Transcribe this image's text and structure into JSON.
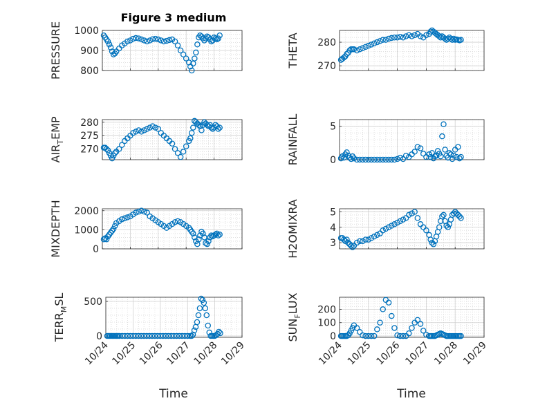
{
  "figure": {
    "title": "Figure 3 medium"
  },
  "chart_data": [
    {
      "id": "p1",
      "type": "scatter",
      "title": "Figure 3 medium",
      "ylabel": "PRESSURE",
      "xlim": [
        0,
        5
      ],
      "ylim": [
        800,
        1000
      ],
      "yticks": [
        800,
        900,
        1000
      ],
      "show_x_ticks": false,
      "x": [
        0.05,
        0.1,
        0.15,
        0.2,
        0.25,
        0.3,
        0.35,
        0.4,
        0.45,
        0.5,
        0.6,
        0.7,
        0.8,
        0.9,
        1.0,
        1.1,
        1.2,
        1.3,
        1.4,
        1.5,
        1.6,
        1.7,
        1.8,
        1.9,
        2.0,
        2.1,
        2.2,
        2.3,
        2.4,
        2.5,
        2.6,
        2.7,
        2.8,
        2.9,
        3.0,
        3.1,
        3.15,
        3.2,
        3.25,
        3.3,
        3.35,
        3.4,
        3.45,
        3.5,
        3.55,
        3.6,
        3.65,
        3.7,
        3.75,
        3.8,
        3.85,
        3.9,
        3.95,
        4.0,
        4.05,
        4.1,
        4.15,
        4.2
      ],
      "y": [
        975,
        965,
        955,
        945,
        930,
        915,
        895,
        880,
        885,
        895,
        910,
        925,
        935,
        945,
        950,
        958,
        962,
        960,
        955,
        950,
        945,
        950,
        956,
        958,
        955,
        950,
        945,
        948,
        952,
        955,
        945,
        925,
        900,
        880,
        860,
        840,
        820,
        800,
        835,
        860,
        890,
        930,
        965,
        975,
        970,
        960,
        950,
        960,
        970,
        965,
        955,
        945,
        950,
        965,
        960,
        955,
        960,
        975
      ]
    },
    {
      "id": "p2",
      "type": "scatter",
      "ylabel": "THETA",
      "xlim": [
        0,
        5
      ],
      "ylim": [
        268,
        285
      ],
      "yticks": [
        270,
        280
      ],
      "show_x_ticks": false,
      "x": [
        0.05,
        0.1,
        0.15,
        0.2,
        0.25,
        0.3,
        0.35,
        0.4,
        0.45,
        0.5,
        0.6,
        0.7,
        0.8,
        0.9,
        1.0,
        1.1,
        1.2,
        1.3,
        1.4,
        1.5,
        1.6,
        1.7,
        1.8,
        1.9,
        2.0,
        2.1,
        2.2,
        2.3,
        2.4,
        2.5,
        2.6,
        2.7,
        2.8,
        2.9,
        3.0,
        3.1,
        3.15,
        3.2,
        3.25,
        3.3,
        3.35,
        3.4,
        3.45,
        3.5,
        3.55,
        3.6,
        3.65,
        3.7,
        3.75,
        3.8,
        3.85,
        3.9,
        3.95,
        4.0,
        4.05,
        4.1,
        4.15,
        4.2
      ],
      "y": [
        272.5,
        273,
        273.5,
        274,
        275,
        275.5,
        276.5,
        277,
        277,
        277,
        276.5,
        277,
        277.5,
        278,
        278.5,
        279,
        279.5,
        280,
        280.5,
        281,
        281,
        281.5,
        281.8,
        282,
        282,
        282.3,
        282,
        282.5,
        283,
        282.5,
        283,
        283.5,
        282.5,
        282,
        283,
        283.5,
        284.5,
        285,
        284.5,
        284,
        283.5,
        283,
        282.5,
        282,
        282.5,
        282,
        281.5,
        281,
        281.5,
        282,
        281.5,
        281,
        281.5,
        281,
        281.2,
        281,
        280.8,
        281
      ]
    },
    {
      "id": "p3",
      "type": "scatter",
      "ylabel_main": "AIR",
      "ylabel_sub": "T",
      "ylabel_tail": "EMP",
      "xlim": [
        0,
        5
      ],
      "ylim": [
        266,
        281
      ],
      "yticks": [
        270,
        275,
        280
      ],
      "show_x_ticks": false,
      "x": [
        0.05,
        0.1,
        0.15,
        0.2,
        0.25,
        0.3,
        0.35,
        0.4,
        0.45,
        0.5,
        0.6,
        0.7,
        0.8,
        0.9,
        1.0,
        1.1,
        1.2,
        1.3,
        1.4,
        1.5,
        1.6,
        1.7,
        1.8,
        1.9,
        2.0,
        2.1,
        2.2,
        2.3,
        2.4,
        2.5,
        2.6,
        2.7,
        2.8,
        2.9,
        3.0,
        3.1,
        3.15,
        3.2,
        3.25,
        3.3,
        3.35,
        3.4,
        3.45,
        3.5,
        3.55,
        3.6,
        3.65,
        3.7,
        3.75,
        3.8,
        3.85,
        3.9,
        3.95,
        4.0,
        4.05,
        4.1,
        4.15,
        4.2
      ],
      "y": [
        270.5,
        270.5,
        270,
        269.5,
        268.5,
        267.5,
        266.5,
        267.5,
        268.5,
        269,
        270,
        271.5,
        273,
        274,
        275,
        276,
        276.5,
        277,
        276.5,
        277,
        277.5,
        278,
        278.5,
        278,
        277.5,
        276,
        275,
        274,
        273,
        272,
        270,
        268.5,
        267,
        269,
        271,
        273,
        274,
        276,
        278,
        280.5,
        280,
        279.5,
        279,
        278.5,
        277,
        279,
        280,
        279.5,
        279,
        278.5,
        279,
        278,
        277.5,
        278,
        279,
        278.5,
        277.5,
        278
      ]
    },
    {
      "id": "p4",
      "type": "scatter",
      "ylabel": "RAINFALL",
      "xlim": [
        0,
        5
      ],
      "ylim": [
        0,
        6
      ],
      "yticks": [
        0,
        5
      ],
      "show_x_ticks": false,
      "x": [
        0.05,
        0.1,
        0.15,
        0.2,
        0.25,
        0.3,
        0.35,
        0.4,
        0.45,
        0.5,
        0.6,
        0.7,
        0.8,
        0.9,
        1.0,
        1.1,
        1.2,
        1.3,
        1.4,
        1.5,
        1.6,
        1.7,
        1.8,
        1.9,
        2.0,
        2.1,
        2.2,
        2.3,
        2.4,
        2.5,
        2.6,
        2.7,
        2.8,
        2.9,
        3.0,
        3.1,
        3.15,
        3.2,
        3.25,
        3.3,
        3.35,
        3.4,
        3.45,
        3.5,
        3.55,
        3.6,
        3.65,
        3.7,
        3.75,
        3.8,
        3.85,
        3.9,
        3.95,
        4.0,
        4.05,
        4.1,
        4.15,
        4.2
      ],
      "y": [
        0.2,
        0.5,
        0.3,
        0.8,
        1.1,
        0.6,
        0.3,
        0.1,
        0.5,
        0.2,
        0,
        0,
        0,
        0,
        0,
        0,
        0,
        0,
        0,
        0,
        0,
        0,
        0,
        0,
        0.1,
        0.3,
        0.1,
        0.6,
        0.4,
        0.8,
        1.2,
        1.9,
        1.7,
        0.9,
        0.4,
        0.8,
        0.4,
        1.0,
        0.2,
        0.5,
        0.6,
        1.3,
        0.9,
        0.5,
        3.5,
        5.3,
        1.5,
        0.6,
        0.3,
        1.0,
        0.8,
        0.1,
        0.6,
        1.5,
        0.4,
        1.9,
        0.2,
        0.4
      ]
    },
    {
      "id": "p5",
      "type": "scatter",
      "ylabel": "MIXDEPTH",
      "xlim": [
        0,
        5
      ],
      "ylim": [
        0,
        2100
      ],
      "yticks": [
        0,
        1000,
        2000
      ],
      "show_x_ticks": false,
      "x": [
        0.05,
        0.1,
        0.15,
        0.2,
        0.25,
        0.3,
        0.35,
        0.4,
        0.45,
        0.5,
        0.6,
        0.7,
        0.8,
        0.9,
        1.0,
        1.1,
        1.2,
        1.3,
        1.4,
        1.5,
        1.6,
        1.7,
        1.8,
        1.9,
        2.0,
        2.1,
        2.2,
        2.3,
        2.4,
        2.5,
        2.6,
        2.7,
        2.8,
        2.9,
        3.0,
        3.1,
        3.15,
        3.2,
        3.25,
        3.3,
        3.35,
        3.4,
        3.45,
        3.5,
        3.55,
        3.6,
        3.65,
        3.7,
        3.75,
        3.8,
        3.85,
        3.9,
        3.95,
        4.0,
        4.05,
        4.1,
        4.15,
        4.2
      ],
      "y": [
        500,
        550,
        500,
        650,
        750,
        850,
        950,
        1050,
        1200,
        1350,
        1450,
        1550,
        1600,
        1650,
        1700,
        1800,
        1900,
        1950,
        2000,
        1950,
        1900,
        1700,
        1600,
        1500,
        1400,
        1300,
        1200,
        1100,
        1200,
        1300,
        1400,
        1450,
        1400,
        1300,
        1200,
        1100,
        1000,
        900,
        800,
        600,
        400,
        250,
        500,
        700,
        900,
        800,
        600,
        300,
        250,
        400,
        600,
        700,
        650,
        700,
        750,
        800,
        700,
        750
      ]
    },
    {
      "id": "p6",
      "type": "scatter",
      "ylabel": "H2OMIXRA",
      "xlim": [
        0,
        5
      ],
      "ylim": [
        2.6,
        5.2
      ],
      "yticks": [
        3,
        4,
        5
      ],
      "show_x_ticks": false,
      "x": [
        0.05,
        0.1,
        0.15,
        0.2,
        0.25,
        0.3,
        0.35,
        0.4,
        0.45,
        0.5,
        0.6,
        0.7,
        0.8,
        0.9,
        1.0,
        1.1,
        1.2,
        1.3,
        1.4,
        1.5,
        1.6,
        1.7,
        1.8,
        1.9,
        2.0,
        2.1,
        2.2,
        2.3,
        2.4,
        2.5,
        2.6,
        2.7,
        2.8,
        2.9,
        3.0,
        3.1,
        3.15,
        3.2,
        3.25,
        3.3,
        3.35,
        3.4,
        3.45,
        3.5,
        3.55,
        3.6,
        3.65,
        3.7,
        3.75,
        3.8,
        3.85,
        3.9,
        3.95,
        4.0,
        4.05,
        4.1,
        4.15,
        4.2
      ],
      "y": [
        3.3,
        3.3,
        3.2,
        3.1,
        3.2,
        3.0,
        2.9,
        2.8,
        2.7,
        2.8,
        3.0,
        3.1,
        3.1,
        3.2,
        3.2,
        3.3,
        3.4,
        3.5,
        3.6,
        3.8,
        3.9,
        4.0,
        4.1,
        4.2,
        4.3,
        4.4,
        4.5,
        4.6,
        4.8,
        4.9,
        5.0,
        4.6,
        4.2,
        4.0,
        3.8,
        3.5,
        3.2,
        3.0,
        2.9,
        3.1,
        3.4,
        3.7,
        4.0,
        4.4,
        4.7,
        4.8,
        4.4,
        4.1,
        4.0,
        4.2,
        4.5,
        4.8,
        4.9,
        5.0,
        4.9,
        4.8,
        4.7,
        4.6
      ]
    },
    {
      "id": "p7",
      "type": "scatter",
      "ylabel_main": "TERR",
      "ylabel_sub": "M",
      "ylabel_tail": "SL",
      "xlim": [
        0,
        5
      ],
      "ylim": [
        -20,
        560
      ],
      "yticks": [
        0,
        500
      ],
      "show_x_ticks": true,
      "x": [
        0.05,
        0.1,
        0.15,
        0.2,
        0.25,
        0.3,
        0.35,
        0.4,
        0.45,
        0.5,
        0.6,
        0.7,
        0.8,
        0.9,
        1.0,
        1.1,
        1.2,
        1.3,
        1.4,
        1.5,
        1.6,
        1.7,
        1.8,
        1.9,
        2.0,
        2.1,
        2.2,
        2.3,
        2.4,
        2.5,
        2.6,
        2.7,
        2.8,
        2.9,
        3.0,
        3.1,
        3.15,
        3.2,
        3.25,
        3.3,
        3.35,
        3.4,
        3.45,
        3.5,
        3.55,
        3.6,
        3.65,
        3.7,
        3.75,
        3.8,
        3.85,
        3.9,
        3.95,
        4.0,
        4.05,
        4.1,
        4.15,
        4.2
      ],
      "y": [
        0,
        0,
        0,
        0,
        0,
        0,
        0,
        0,
        0,
        0,
        0,
        0,
        0,
        0,
        0,
        0,
        0,
        0,
        0,
        0,
        0,
        0,
        0,
        0,
        0,
        0,
        0,
        0,
        0,
        0,
        0,
        0,
        0,
        0,
        0,
        0,
        0,
        20,
        80,
        130,
        200,
        300,
        400,
        540,
        520,
        480,
        400,
        300,
        150,
        50,
        0,
        0,
        0,
        0,
        10,
        30,
        60,
        40
      ]
    },
    {
      "id": "p8",
      "type": "scatter",
      "ylabel_main": "SUN",
      "ylabel_sub": "F",
      "ylabel_tail": "LUX",
      "xlim": [
        0,
        5
      ],
      "ylim": [
        -10,
        290
      ],
      "yticks": [
        0,
        100,
        200
      ],
      "show_x_ticks": true,
      "x": [
        0.05,
        0.1,
        0.15,
        0.2,
        0.25,
        0.3,
        0.35,
        0.4,
        0.45,
        0.5,
        0.6,
        0.7,
        0.8,
        0.9,
        1.0,
        1.1,
        1.2,
        1.3,
        1.4,
        1.5,
        1.6,
        1.7,
        1.8,
        1.9,
        2.0,
        2.1,
        2.2,
        2.3,
        2.4,
        2.5,
        2.6,
        2.7,
        2.8,
        2.9,
        3.0,
        3.1,
        3.15,
        3.2,
        3.25,
        3.3,
        3.35,
        3.4,
        3.45,
        3.5,
        3.55,
        3.6,
        3.65,
        3.7,
        3.75,
        3.8,
        3.85,
        3.9,
        3.95,
        4.0,
        4.05,
        4.1,
        4.15,
        4.2
      ],
      "y": [
        0,
        0,
        0,
        0,
        0,
        5,
        20,
        40,
        60,
        80,
        60,
        30,
        5,
        0,
        0,
        0,
        0,
        50,
        100,
        200,
        270,
        250,
        150,
        60,
        5,
        0,
        0,
        0,
        20,
        60,
        100,
        120,
        90,
        40,
        10,
        0,
        0,
        0,
        0,
        0,
        5,
        10,
        15,
        20,
        15,
        10,
        5,
        0,
        0,
        0,
        0,
        0,
        0,
        0,
        0,
        0,
        0,
        0
      ]
    }
  ],
  "axes_common": {
    "xticklabels": [
      "10/24",
      "10/25",
      "10/26",
      "10/27",
      "10/28",
      "10/29"
    ],
    "xlabel": "Time",
    "marker_color": "#0072BD"
  }
}
